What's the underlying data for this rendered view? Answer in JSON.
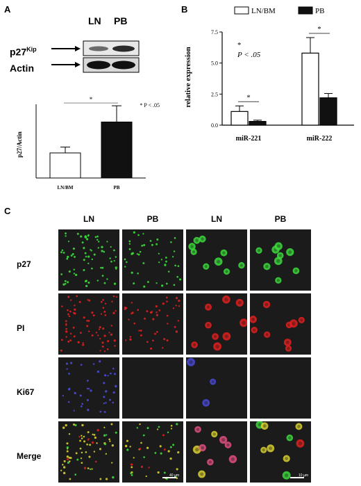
{
  "panel_a": {
    "letter": "A",
    "blot": {
      "col_labels": [
        "LN",
        "PB"
      ],
      "row1_label_main": "p27",
      "row1_label_sup": "Kip",
      "row2_label": "Actin"
    },
    "significance_note": "* P < .05",
    "star": "*"
  },
  "panel_b": {
    "letter": "B",
    "note_star": "*",
    "note_p": "P < .05",
    "star": "*"
  },
  "panel_c": {
    "letter": "C",
    "col_labels": [
      "LN",
      "PB",
      "LN",
      "PB"
    ],
    "row_labels": [
      "p27",
      "PI",
      "Ki67",
      "Merge"
    ],
    "scale_bars": [
      "40 µm",
      "10 µm"
    ]
  },
  "chart_data": [
    {
      "type": "bar",
      "panel": "A",
      "categories": [
        "LN/BM",
        "PB"
      ],
      "values": [
        1.7,
        3.8
      ],
      "errors": [
        0.4,
        1.1
      ],
      "colors": [
        "#ffffff",
        "#111111"
      ],
      "ylabel": "p27/Actin",
      "xlabel": "",
      "ylim": [
        0,
        5
      ],
      "ticks": [],
      "significance": {
        "pair": [
          0,
          1
        ],
        "label": "*"
      }
    },
    {
      "type": "bar",
      "panel": "B",
      "categories": [
        "miR-221",
        "miR-222"
      ],
      "series": [
        {
          "name": "LN/BM",
          "values": [
            1.1,
            5.8
          ],
          "errors": [
            0.45,
            1.25
          ],
          "color": "#ffffff"
        },
        {
          "name": "PB",
          "values": [
            0.3,
            2.2
          ],
          "errors": [
            0.1,
            0.35
          ],
          "color": "#111111"
        }
      ],
      "ylabel": "relative expression",
      "xlabel": "",
      "ylim": [
        0,
        7.5
      ],
      "ticks": [
        "0.0",
        "2.5",
        "5.0",
        "7.5"
      ],
      "tick_values": [
        0,
        2.5,
        5,
        7.5
      ],
      "legend": "top",
      "significance": [
        {
          "group": 0,
          "label": "*"
        },
        {
          "group": 1,
          "label": "*"
        }
      ]
    }
  ],
  "colors": {
    "green": "#3ddc3d",
    "red": "#e02020",
    "blue": "#4a4ad8",
    "yellow": "#d8d030",
    "background": "#1b1b1b"
  }
}
